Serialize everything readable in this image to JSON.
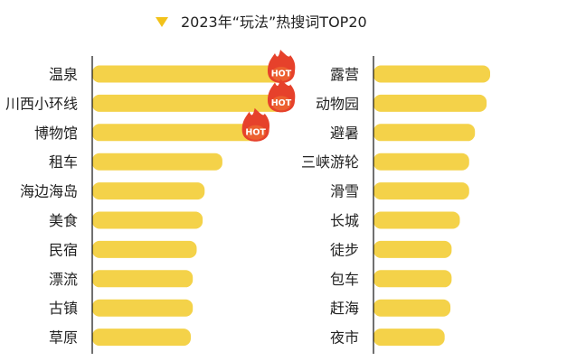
{
  "colors": {
    "bar": "#f4d249",
    "axis": "#111111",
    "title_marker": "#f2c21a",
    "hot_flame_outer": "#e6412b",
    "hot_flame_inner": "#f07a33",
    "hot_text": "#ffffff",
    "label_text": "#222222"
  },
  "hot_badge_label": "HOT",
  "chart_data": {
    "type": "bar",
    "orientation": "horizontal",
    "title": "2023年“玩法”热搜词TOP20",
    "xlabel": "",
    "ylabel": "",
    "grid": false,
    "legend": "none",
    "panels": [
      {
        "categories": [
          "温泉",
          "川西小环线",
          "博物馆",
          "租车",
          "海边海岛",
          "美食",
          "民宿",
          "漂流",
          "古镇",
          "草原"
        ],
        "values": [
          100,
          100,
          87,
          66,
          57,
          56,
          53,
          51,
          51,
          50
        ],
        "hot": [
          true,
          true,
          true,
          false,
          false,
          false,
          false,
          false,
          false,
          false
        ]
      },
      {
        "categories": [
          "露营",
          "动物园",
          "避暑",
          "三峡游轮",
          "滑雪",
          "长城",
          "徒步",
          "包车",
          "赶海",
          "夜市"
        ],
        "values": [
          100,
          97,
          87,
          82,
          82,
          74,
          67,
          67,
          66,
          61
        ],
        "hot": [
          false,
          false,
          false,
          false,
          false,
          false,
          false,
          false,
          false,
          false
        ]
      }
    ]
  }
}
